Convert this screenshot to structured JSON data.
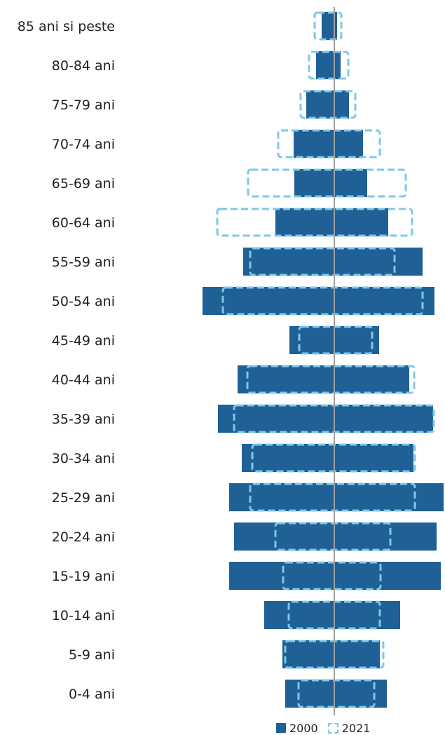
{
  "colors": {
    "series_2000": "#1f6096",
    "series_2021": "#7ec8e8",
    "axis": "#a0a0a0"
  },
  "legend": {
    "s2000": "2000",
    "s2021": "2021"
  },
  "chart_data": {
    "type": "bar",
    "subtype": "population-pyramid",
    "title": "",
    "xlabel": "",
    "ylabel": "",
    "grid": false,
    "legend_position": "bottom-right",
    "categories": [
      "85 ani si peste",
      "80-84 ani",
      "75-79 ani",
      "70-74 ani",
      "65-69 ani",
      "60-64 ani",
      "55-59 ani",
      "50-54 ani",
      "45-49 ani",
      "40-44 ani",
      "35-39 ani",
      "30-34 ani",
      "25-29 ani",
      "20-24 ani",
      "15-19 ani",
      "10-14 ani",
      "5-9 ani",
      "0-4 ani"
    ],
    "series": [
      {
        "name": "2000",
        "style": "filled",
        "left": [
          18,
          26,
          40,
          58,
          57,
          84,
          130,
          188,
          64,
          138,
          166,
          132,
          150,
          143,
          150,
          100,
          74,
          70
        ],
        "right": [
          4,
          9,
          21,
          41,
          47,
          77,
          126,
          143,
          64,
          107,
          141,
          113,
          156,
          146,
          152,
          94,
          65,
          75
        ]
      },
      {
        "name": "2021",
        "style": "dashed-outline",
        "left": [
          28,
          36,
          48,
          80,
          123,
          167,
          120,
          159,
          50,
          124,
          143,
          117,
          120,
          84,
          73,
          65,
          70,
          51
        ],
        "right": [
          10,
          20,
          30,
          65,
          102,
          111,
          86,
          126,
          54,
          114,
          142,
          115,
          115,
          80,
          66,
          65,
          70,
          57
        ]
      }
    ]
  }
}
